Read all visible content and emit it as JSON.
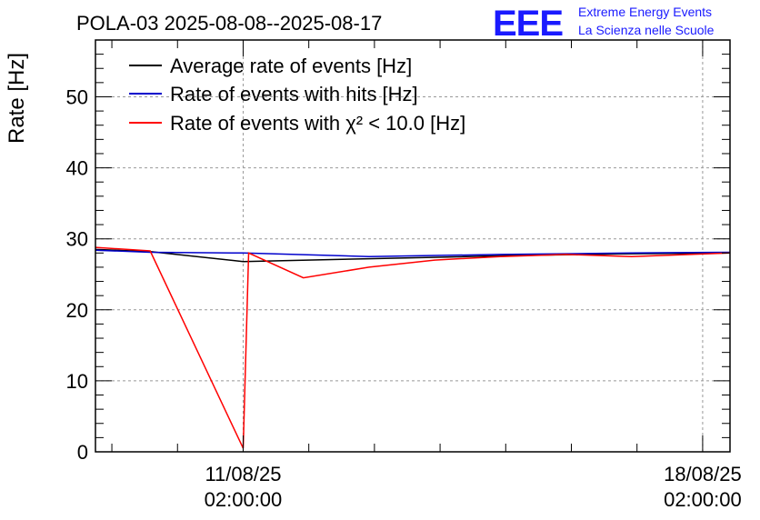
{
  "header": {
    "title": "POLA-03 2025-08-08--2025-08-17",
    "logo_text": "EEE",
    "logo_line1": "Extreme Energy Events",
    "logo_line2": "La Scienza nelle Scuole"
  },
  "colors": {
    "average": "#000000",
    "hits": "#0000cc",
    "chi2": "#ff0000",
    "logo": "#1a1aff",
    "grid": "#999999"
  },
  "chart_data": {
    "type": "line",
    "title": "POLA-03 2025-08-08--2025-08-17",
    "xlabel": "",
    "ylabel": "Rate [Hz]",
    "ylim": [
      0,
      58
    ],
    "yticks": [
      0,
      10,
      20,
      30,
      40,
      50
    ],
    "xticks": [
      {
        "date": "11/08/25",
        "time": "02:00:00"
      },
      {
        "date": "18/08/25",
        "time": "02:00:00"
      }
    ],
    "xlim": [
      "2025-08-08 20:00",
      "2025-08-18 12:00"
    ],
    "grid": true,
    "legend_position": "top-left",
    "series": [
      {
        "name": "Average rate of events [Hz]",
        "color": "#000000",
        "x": [
          "2025-08-08 20:00",
          "2025-08-09 16:00",
          "2025-08-11 02:00",
          "2025-08-13 00:00",
          "2025-08-15 00:00",
          "2025-08-17 00:00",
          "2025-08-18 12:00"
        ],
        "y": [
          28.5,
          28.2,
          26.8,
          27.2,
          27.6,
          27.9,
          28.0
        ]
      },
      {
        "name": "Rate of events with hits [Hz]",
        "color": "#0000cc",
        "x": [
          "2025-08-08 20:00",
          "2025-08-09 16:00",
          "2025-08-11 02:00",
          "2025-08-13 00:00",
          "2025-08-15 00:00",
          "2025-08-17 00:00",
          "2025-08-18 12:00"
        ],
        "y": [
          28.4,
          28.1,
          28.0,
          27.5,
          27.8,
          28.0,
          28.1
        ]
      },
      {
        "name": "Rate of events with χ² < 10.0 [Hz]",
        "color": "#ff0000",
        "x": [
          "2025-08-08 20:00",
          "2025-08-09 16:00",
          "2025-08-11 02:00",
          "2025-08-11 04:00",
          "2025-08-12 00:00",
          "2025-08-13 00:00",
          "2025-08-14 00:00",
          "2025-08-15 00:00",
          "2025-08-16 00:00",
          "2025-08-17 00:00",
          "2025-08-18 12:00"
        ],
        "y": [
          28.8,
          28.3,
          0.5,
          28.0,
          24.5,
          26.0,
          27.0,
          27.5,
          27.8,
          27.5,
          28.0
        ]
      }
    ]
  }
}
